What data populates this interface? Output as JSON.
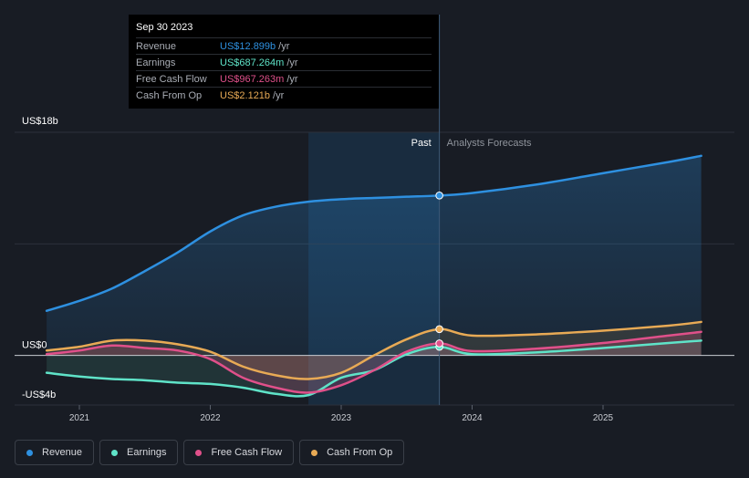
{
  "tooltip": {
    "date": "Sep 30 2023",
    "rows": [
      {
        "label": "Revenue",
        "value": "US$12.899b",
        "unit": "/yr",
        "color": "#2e90e0"
      },
      {
        "label": "Earnings",
        "value": "US$687.264m",
        "unit": "/yr",
        "color": "#5fe3c8"
      },
      {
        "label": "Free Cash Flow",
        "value": "US$967.263m",
        "unit": "/yr",
        "color": "#e0508a"
      },
      {
        "label": "Cash From Op",
        "value": "US$2.121b",
        "unit": "/yr",
        "color": "#e8aa55"
      }
    ]
  },
  "chart_data": {
    "type": "line",
    "y_axis_labels": {
      "top": "US$18b",
      "zero": "US$0",
      "bottom": "-US$4b"
    },
    "x_ticks": [
      "2021",
      "2022",
      "2023",
      "2024",
      "2025"
    ],
    "ylim": [
      -4,
      18
    ],
    "region_labels": {
      "past": "Past",
      "forecast": "Analysts Forecasts"
    },
    "past_end_year": 2023.75,
    "highlight_start_year": 2022.75,
    "series": [
      {
        "name": "Revenue",
        "color": "#2e90e0",
        "points": [
          [
            2020.75,
            3.6
          ],
          [
            2021.0,
            4.4
          ],
          [
            2021.25,
            5.4
          ],
          [
            2021.5,
            6.8
          ],
          [
            2021.75,
            8.3
          ],
          [
            2022.0,
            10.0
          ],
          [
            2022.25,
            11.3
          ],
          [
            2022.5,
            12.0
          ],
          [
            2022.75,
            12.4
          ],
          [
            2023.0,
            12.6
          ],
          [
            2023.25,
            12.7
          ],
          [
            2023.5,
            12.8
          ],
          [
            2023.75,
            12.9
          ],
          [
            2024.0,
            13.1
          ],
          [
            2024.5,
            13.8
          ],
          [
            2025.0,
            14.7
          ],
          [
            2025.5,
            15.6
          ],
          [
            2025.75,
            16.1
          ]
        ]
      },
      {
        "name": "Earnings",
        "color": "#5fe3c8",
        "points": [
          [
            2020.75,
            -1.4
          ],
          [
            2021.0,
            -1.7
          ],
          [
            2021.25,
            -1.9
          ],
          [
            2021.5,
            -2.0
          ],
          [
            2021.75,
            -2.2
          ],
          [
            2022.0,
            -2.3
          ],
          [
            2022.25,
            -2.6
          ],
          [
            2022.5,
            -3.1
          ],
          [
            2022.75,
            -3.2
          ],
          [
            2023.0,
            -1.8
          ],
          [
            2023.25,
            -1.2
          ],
          [
            2023.5,
            0.1
          ],
          [
            2023.75,
            0.69
          ],
          [
            2024.0,
            0.1
          ],
          [
            2024.5,
            0.25
          ],
          [
            2025.0,
            0.6
          ],
          [
            2025.5,
            1.0
          ],
          [
            2025.75,
            1.2
          ]
        ]
      },
      {
        "name": "Free Cash Flow",
        "color": "#e0508a",
        "points": [
          [
            2020.75,
            0.1
          ],
          [
            2021.0,
            0.4
          ],
          [
            2021.25,
            0.8
          ],
          [
            2021.5,
            0.6
          ],
          [
            2021.75,
            0.4
          ],
          [
            2022.0,
            -0.3
          ],
          [
            2022.25,
            -1.8
          ],
          [
            2022.5,
            -2.6
          ],
          [
            2022.75,
            -3.0
          ],
          [
            2023.0,
            -2.4
          ],
          [
            2023.25,
            -1.2
          ],
          [
            2023.5,
            0.3
          ],
          [
            2023.75,
            0.97
          ],
          [
            2024.0,
            0.35
          ],
          [
            2024.5,
            0.55
          ],
          [
            2025.0,
            1.0
          ],
          [
            2025.5,
            1.6
          ],
          [
            2025.75,
            1.9
          ]
        ]
      },
      {
        "name": "Cash From Op",
        "color": "#e8aa55",
        "points": [
          [
            2020.75,
            0.4
          ],
          [
            2021.0,
            0.7
          ],
          [
            2021.25,
            1.2
          ],
          [
            2021.5,
            1.2
          ],
          [
            2021.75,
            0.9
          ],
          [
            2022.0,
            0.3
          ],
          [
            2022.25,
            -0.9
          ],
          [
            2022.5,
            -1.6
          ],
          [
            2022.75,
            -1.9
          ],
          [
            2023.0,
            -1.4
          ],
          [
            2023.25,
            0.0
          ],
          [
            2023.5,
            1.3
          ],
          [
            2023.75,
            2.12
          ],
          [
            2024.0,
            1.6
          ],
          [
            2024.5,
            1.7
          ],
          [
            2025.0,
            2.0
          ],
          [
            2025.5,
            2.4
          ],
          [
            2025.75,
            2.7
          ]
        ]
      }
    ],
    "legend": [
      "Revenue",
      "Earnings",
      "Free Cash Flow",
      "Cash From Op"
    ],
    "legend_placement": "bottom-left"
  }
}
